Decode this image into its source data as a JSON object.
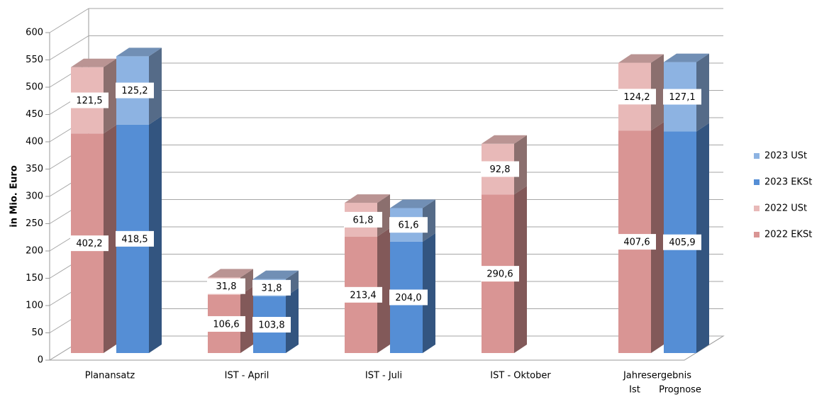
{
  "chart_data": {
    "type": "bar3d_stacked",
    "y_label": "in Mio. Euro",
    "categories": [
      "Planansatz",
      "IST - April",
      "IST - Juli",
      "IST - Oktober",
      "Jahresergebnis"
    ],
    "annotations": [
      "Ist",
      "Prognose"
    ],
    "series": [
      {
        "name": "2022 EKSt",
        "color": "#d99594",
        "values": [
          402.2,
          106.6,
          213.4,
          290.6,
          407.6
        ],
        "value_labels": [
          "402,2",
          "106,6",
          "213,4",
          "290,6",
          "407,6"
        ]
      },
      {
        "name": "2022 USt",
        "color": "#e8b9b8",
        "values": [
          121.5,
          31.8,
          61.8,
          92.8,
          124.2
        ],
        "value_labels": [
          "121,5",
          "31,8",
          "61,8",
          "92,8",
          "124,2"
        ]
      },
      {
        "name": "2023 EKSt",
        "color": "#558ed5",
        "values": [
          418.5,
          103.8,
          204.0,
          null,
          405.9
        ],
        "value_labels": [
          "418,5",
          "103,8",
          "204,0",
          null,
          "405,9"
        ]
      },
      {
        "name": "2023 USt",
        "color": "#8db3e2",
        "values": [
          125.2,
          31.8,
          61.6,
          null,
          127.1
        ],
        "value_labels": [
          "125,2",
          "31,8",
          "61,6",
          null,
          "127,1"
        ]
      }
    ],
    "ylim": [
      0,
      600
    ],
    "yticks": [
      0,
      50,
      100,
      150,
      200,
      250,
      300,
      350,
      400,
      450,
      500,
      550,
      600
    ],
    "grid": true,
    "legend": "right"
  }
}
